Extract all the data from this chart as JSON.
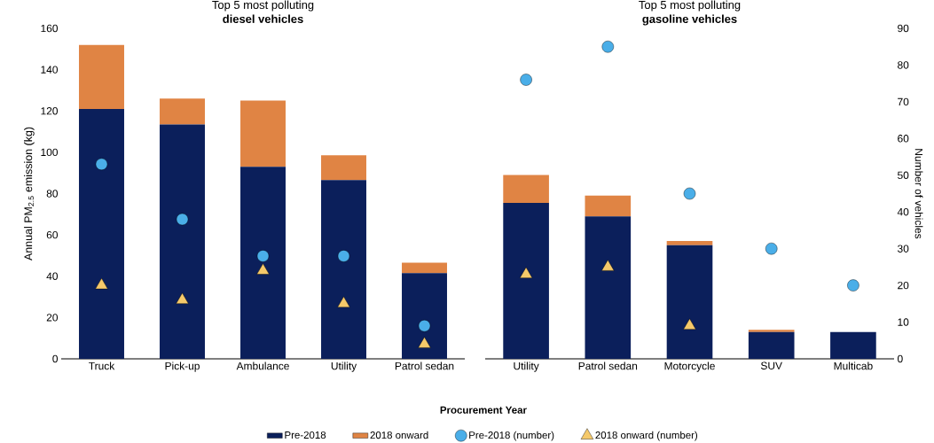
{
  "chart_data": [
    {
      "type": "bar",
      "title": "Top 5 most polluting",
      "subtitle": "diesel vehicles",
      "ylabel": "Annual PM$_{2.5}$ emission (kg)",
      "categories": [
        "Truck",
        "Pick-up",
        "Ambulance",
        "Utility",
        "Patrol sedan"
      ],
      "stacked": true,
      "ylim": [
        0,
        160
      ],
      "yticks": [
        0,
        20,
        40,
        60,
        80,
        100,
        120,
        140,
        160
      ],
      "y2lim": [
        0,
        90
      ],
      "tick_labels": [
        "x",
        "y"
      ],
      "legend": "bottom",
      "legend_title": "Procurement Year",
      "series": [
        {
          "name": "Pre-2018",
          "color": "#0b1f5b",
          "values": [
            121,
            113.5,
            93,
            86.5,
            41.5
          ]
        },
        {
          "name": "2018 onward",
          "color": "#e08444",
          "values": [
            31,
            12.5,
            32,
            12,
            5
          ]
        },
        {
          "name": "Pre-2018 (number)",
          "type": "scatter",
          "axis": "y2",
          "marker": "circle",
          "color": "#4aaee8",
          "values": [
            53,
            38,
            28,
            28,
            9
          ]
        },
        {
          "name": "2018 onward (number)",
          "type": "scatter",
          "axis": "y2",
          "marker": "triangle",
          "color": "#f5c96a",
          "values": [
            20,
            16,
            24,
            15,
            4
          ]
        }
      ]
    },
    {
      "type": "bar",
      "title": "Top 5 most polluting",
      "subtitle": "gasoline vehicles",
      "y2label": "Number of vehicles",
      "categories": [
        "Utility",
        "Patrol sedan",
        "Motorcycle",
        "SUV",
        "Multicab"
      ],
      "stacked": true,
      "ylim": [
        0,
        160
      ],
      "y2lim": [
        0,
        90
      ],
      "y2ticks": [
        0,
        10,
        20,
        30,
        40,
        50,
        60,
        70,
        80,
        90
      ],
      "tick_labels": [
        "x",
        "y2"
      ],
      "series": [
        {
          "color": "#0b1f5b",
          "values": [
            75.5,
            69,
            55,
            13,
            13
          ]
        },
        {
          "color": "#e08444",
          "values": [
            13.5,
            10,
            2,
            1,
            0
          ]
        },
        {
          "type": "scatter",
          "axis": "y2",
          "marker": "circle",
          "color": "#4aaee8",
          "values": [
            76,
            85,
            45,
            30,
            20
          ]
        },
        {
          "type": "scatter",
          "axis": "y2",
          "marker": "triangle",
          "color": "#f5c96a",
          "values": [
            23,
            25,
            9,
            null,
            null
          ]
        }
      ]
    }
  ]
}
